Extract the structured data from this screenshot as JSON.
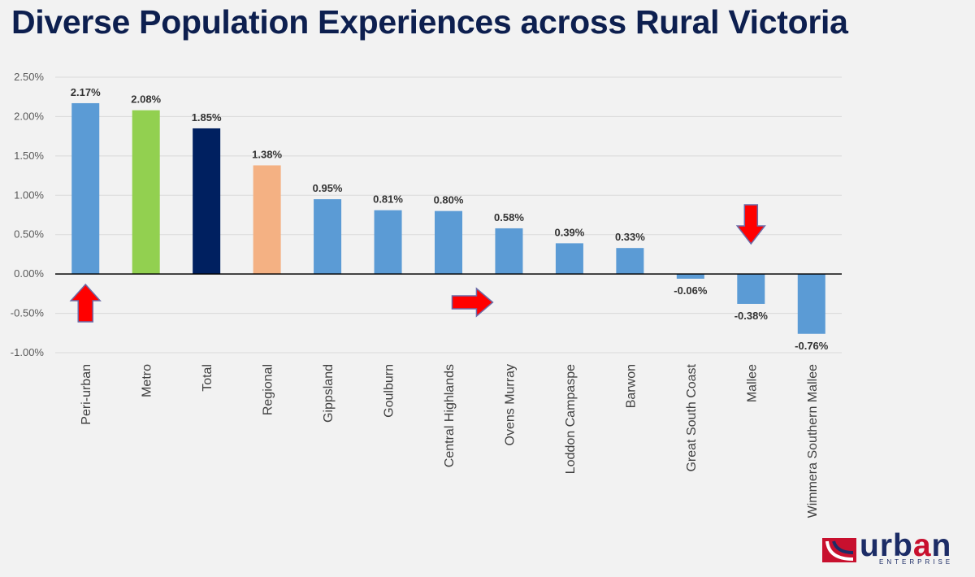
{
  "title": "Diverse Population Experiences across Rural Victoria",
  "logo": {
    "word_part1": "urb",
    "word_accent": "a",
    "word_part2": "n",
    "subtitle": "ENTERPRISE"
  },
  "chart_data": {
    "type": "bar",
    "title": "Diverse Population Experiences across Rural Victoria",
    "xlabel": "",
    "ylabel": "",
    "ylim": [
      -0.01,
      0.025
    ],
    "yticks": [
      0.025,
      0.02,
      0.015,
      0.01,
      0.005,
      0.0,
      -0.005,
      -0.01
    ],
    "ytick_labels": [
      "2.50%",
      "2.00%",
      "1.50%",
      "1.00%",
      "0.50%",
      "0.00%",
      "-0.50%",
      "-1.00%"
    ],
    "grid": true,
    "categories": [
      "Peri-urban",
      "Metro",
      "Total",
      "Regional",
      "Gippsland",
      "Goulburn",
      "Central Highlands",
      "Ovens Murray",
      "Loddon Campaspe",
      "Barwon",
      "Great South Coast",
      "Mallee",
      "Wimmera Southern Mallee"
    ],
    "values": [
      0.0217,
      0.0208,
      0.0185,
      0.0138,
      0.0095,
      0.0081,
      0.008,
      0.0058,
      0.0039,
      0.0033,
      -0.0006,
      -0.0038,
      -0.0076
    ],
    "value_labels": [
      "2.17%",
      "2.08%",
      "1.85%",
      "1.38%",
      "0.95%",
      "0.81%",
      "0.80%",
      "0.58%",
      "0.39%",
      "0.33%",
      "-0.06%",
      "-0.38%",
      "-0.76%"
    ],
    "colors": [
      "#5b9bd5",
      "#92d050",
      "#002060",
      "#f4b183",
      "#5b9bd5",
      "#5b9bd5",
      "#5b9bd5",
      "#5b9bd5",
      "#5b9bd5",
      "#5b9bd5",
      "#5b9bd5",
      "#5b9bd5",
      "#5b9bd5"
    ],
    "annotations": [
      {
        "type": "arrow",
        "direction": "up",
        "near_category": "Peri-urban",
        "color": "#ff0000"
      },
      {
        "type": "arrow",
        "direction": "right",
        "near_category": "Ovens Murray",
        "color": "#ff0000"
      },
      {
        "type": "arrow",
        "direction": "down",
        "near_category": "Mallee",
        "color": "#ff0000"
      }
    ]
  }
}
